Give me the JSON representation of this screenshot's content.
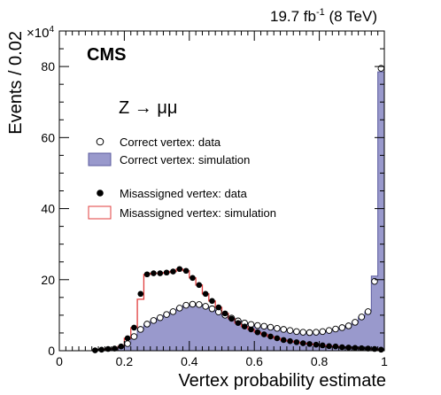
{
  "header": {
    "lumi": "19.7 fb",
    "lumi_sup": "-1",
    "energy": " (8 TeV)",
    "experiment": "CMS",
    "multiplier_base": "×10",
    "multiplier_exp": "4"
  },
  "chart_data": {
    "type": "histogram",
    "title": "",
    "annotation": "Z → μμ",
    "xlabel": "Vertex probability estimate",
    "ylabel": "Events / 0.02",
    "xlim": [
      0,
      1
    ],
    "ylim": [
      0,
      90
    ],
    "y_scale_note": "values in units of 10^4",
    "xticks": [
      "0",
      "0.2",
      "0.4",
      "0.6",
      "0.8",
      "1"
    ],
    "yticks": [
      "0",
      "20",
      "40",
      "60",
      "80"
    ],
    "bin_width": 0.02,
    "x": [
      0.11,
      0.13,
      0.15,
      0.17,
      0.19,
      0.21,
      0.23,
      0.25,
      0.27,
      0.29,
      0.31,
      0.33,
      0.35,
      0.37,
      0.39,
      0.41,
      0.43,
      0.45,
      0.47,
      0.49,
      0.51,
      0.53,
      0.55,
      0.57,
      0.59,
      0.61,
      0.63,
      0.65,
      0.67,
      0.69,
      0.71,
      0.73,
      0.75,
      0.77,
      0.79,
      0.81,
      0.83,
      0.85,
      0.87,
      0.89,
      0.91,
      0.93,
      0.95,
      0.97,
      0.99
    ],
    "legend": {
      "position": "upper-left",
      "entries": [
        {
          "label": "Correct vertex: data",
          "style": "open-circle"
        },
        {
          "label": "Correct vertex: simulation",
          "style": "filled-blue"
        },
        {
          "label": "Misassigned vertex: data",
          "style": "filled-circle"
        },
        {
          "label": "Misassigned vertex: simulation",
          "style": "red-line"
        }
      ]
    },
    "series": [
      {
        "name": "Correct vertex: data",
        "kind": "points-open",
        "values": [
          0,
          0.1,
          0.2,
          0.3,
          0.8,
          2.0,
          4.0,
          6.0,
          7.5,
          8.5,
          9.3,
          10.2,
          11.0,
          12.0,
          12.8,
          13.1,
          13.0,
          12.5,
          11.8,
          10.9,
          10.0,
          9.2,
          8.4,
          7.8,
          7.4,
          7.1,
          6.9,
          6.6,
          6.3,
          6.0,
          5.7,
          5.4,
          5.2,
          5.1,
          5.2,
          5.4,
          5.7,
          6.1,
          6.5,
          7.0,
          8.0,
          9.5,
          11.0,
          19.5,
          79.5
        ]
      },
      {
        "name": "Correct vertex: simulation",
        "kind": "filled-step",
        "color": "#9999cc",
        "values": [
          0,
          0.1,
          0.2,
          0.3,
          0.8,
          2.0,
          4.0,
          6.0,
          7.5,
          8.5,
          9.3,
          10.2,
          11.0,
          12.0,
          12.8,
          13.1,
          13.0,
          12.5,
          11.8,
          10.9,
          10.0,
          9.2,
          8.4,
          7.8,
          7.4,
          7.1,
          6.9,
          6.6,
          6.3,
          6.0,
          5.7,
          5.4,
          5.2,
          5.1,
          5.2,
          5.4,
          5.7,
          6.1,
          6.5,
          7.0,
          8.0,
          9.5,
          11.0,
          21.0,
          78.5
        ]
      },
      {
        "name": "Misassigned vertex: data",
        "kind": "points-filled",
        "values": [
          0.1,
          0.3,
          0.5,
          0.6,
          1.2,
          3.5,
          6.5,
          16.0,
          21.5,
          21.8,
          21.8,
          22.0,
          22.3,
          23.0,
          22.5,
          20.5,
          18.5,
          16.0,
          14.0,
          12.2,
          10.5,
          9.0,
          7.8,
          6.8,
          6.0,
          5.2,
          4.6,
          4.0,
          3.5,
          3.0,
          2.7,
          2.4,
          2.1,
          1.9,
          1.7,
          1.5,
          1.3,
          1.2,
          1.0,
          0.9,
          0.8,
          0.7,
          0.6,
          0.5,
          0.3
        ]
      },
      {
        "name": "Misassigned vertex: simulation",
        "kind": "line-step",
        "color": "#e03c3c",
        "values": [
          0.1,
          0.3,
          0.5,
          0.6,
          1.2,
          3.5,
          6.5,
          14.5,
          21.5,
          21.8,
          21.8,
          22.0,
          22.3,
          23.0,
          22.5,
          20.5,
          18.5,
          16.0,
          14.0,
          12.2,
          10.5,
          9.0,
          7.8,
          6.8,
          6.0,
          5.2,
          4.6,
          4.0,
          3.5,
          3.0,
          2.7,
          2.4,
          2.1,
          1.9,
          1.7,
          1.5,
          1.3,
          1.2,
          1.0,
          0.9,
          0.8,
          0.7,
          0.6,
          0.5,
          0.3
        ]
      }
    ]
  }
}
